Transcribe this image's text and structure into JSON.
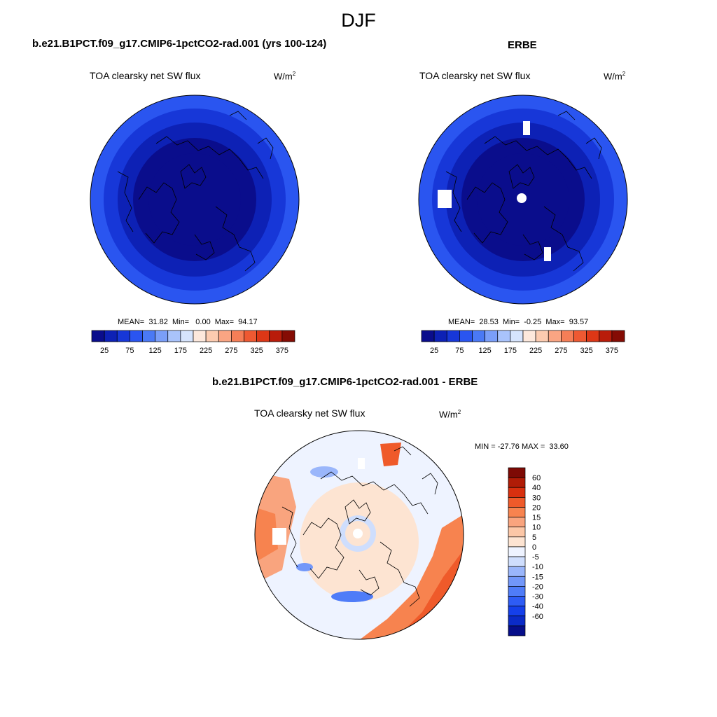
{
  "figure": {
    "title": "DJF"
  },
  "palettes": {
    "abs_colors": [
      "#0a0d8c",
      "#0d21b5",
      "#1737d8",
      "#2a55f0",
      "#4a79f5",
      "#7a9ef8",
      "#a9c3fb",
      "#d6e4fd",
      "#fde8dc",
      "#fccbb0",
      "#f9a583",
      "#f57e57",
      "#ee5932",
      "#dd3716",
      "#b91c0a",
      "#850c04"
    ],
    "abs_ticks": [
      "25",
      "75",
      "125",
      "175",
      "225",
      "275",
      "325",
      "375"
    ],
    "diff_colors": [
      "#060e8a",
      "#0b2bc7",
      "#1540ea",
      "#2e5cf5",
      "#4f7cf8",
      "#7297f9",
      "#9ab6fb",
      "#cfdefd",
      "#eef3ff",
      "#fde4d2",
      "#fcc7a7",
      "#f9a47e",
      "#f7834f",
      "#ef5a2a",
      "#d8300f",
      "#b01c07",
      "#7e0a05"
    ],
    "diff_labels": [
      "60",
      "40",
      "30",
      "20",
      "15",
      "10",
      "5",
      "0",
      "-5",
      "-10",
      "-15",
      "-20",
      "-30",
      "-40",
      "-60"
    ]
  },
  "panels": {
    "model": {
      "title": "b.e21.B1PCT.f09_g17.CMIP6-1pctCO2-rad.001 (yrs 100-124)",
      "subtitle": "TOA clearsky net SW flux",
      "units": "W/m",
      "units_sup": "2",
      "stats": "MEAN=  31.82  Min=   0.00  Max=  94.17"
    },
    "obs": {
      "title": "ERBE",
      "subtitle": "TOA clearsky net SW flux",
      "units": "W/m",
      "units_sup": "2",
      "stats": "MEAN=  28.53  Min=  -0.25  Max=  93.57"
    },
    "diff": {
      "title": "b.e21.B1PCT.f09_g17.CMIP6-1pctCO2-rad.001 - ERBE",
      "subtitle": "TOA clearsky net SW flux",
      "units": "W/m",
      "units_sup": "2",
      "stats": "MIN = -27.76 MAX =  33.60"
    }
  },
  "chart_data": [
    {
      "type": "heatmap",
      "projection": "north polar stereographic",
      "title": "b.e21.B1PCT.f09_g17.CMIP6-1pctCO2-rad.001 (yrs 100-124)",
      "variable": "TOA clearsky net SW flux",
      "units": "W/m2",
      "mean": 31.82,
      "min": 0.0,
      "max": 94.17,
      "colorbar_ticks": [
        25,
        75,
        125,
        175,
        225,
        275,
        325,
        375
      ],
      "colorbar_range": [
        0,
        400
      ],
      "rings_from_pole_inner_to_outer": [
        12.5,
        12.5,
        37.5,
        62.5,
        87.5
      ]
    },
    {
      "type": "heatmap",
      "projection": "north polar stereographic",
      "title": "ERBE",
      "variable": "TOA clearsky net SW flux",
      "units": "W/m2",
      "mean": 28.53,
      "min": -0.25,
      "max": 93.57,
      "colorbar_ticks": [
        25,
        75,
        125,
        175,
        225,
        275,
        325,
        375
      ],
      "colorbar_range": [
        0,
        400
      ],
      "rings_from_pole_inner_to_outer": [
        12.5,
        12.5,
        37.5,
        62.5,
        87.5
      ],
      "missing_regions": [
        "north pole",
        "Greenland east coast",
        "Siberian coast",
        "Scandinavia"
      ]
    },
    {
      "type": "heatmap",
      "projection": "north polar stereographic",
      "title": "b.e21.B1PCT.f09_g17.CMIP6-1pctCO2-rad.001 - ERBE",
      "variable": "TOA clearsky net SW flux",
      "units": "W/m2",
      "min": -27.76,
      "max": 33.6,
      "contour_levels": [
        -60,
        -40,
        -30,
        -20,
        -15,
        -10,
        -5,
        0,
        5,
        10,
        15,
        20,
        30,
        40,
        60
      ]
    }
  ]
}
